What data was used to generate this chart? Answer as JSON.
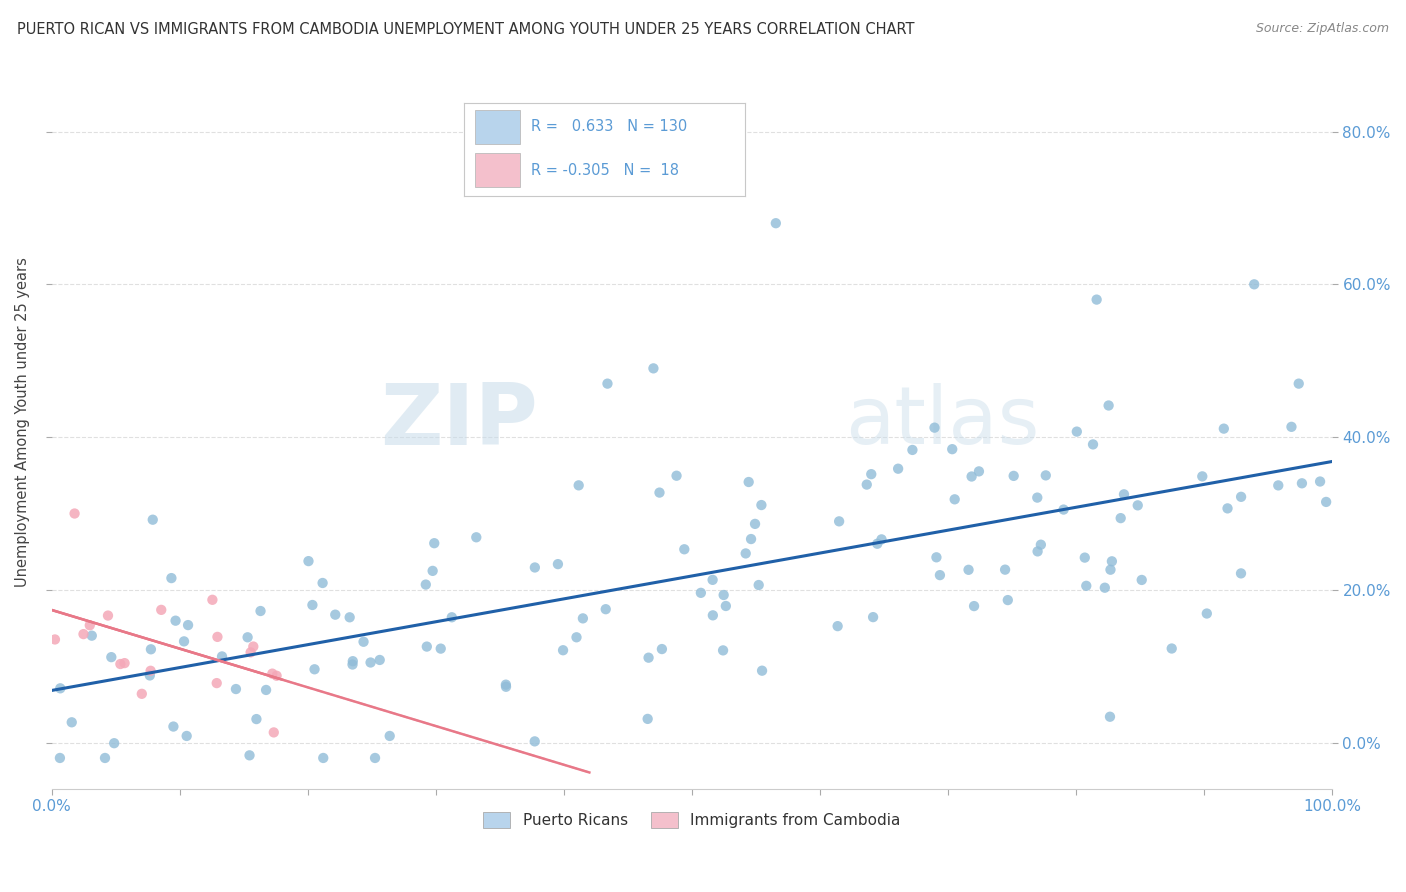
{
  "title": "PUERTO RICAN VS IMMIGRANTS FROM CAMBODIA UNEMPLOYMENT AMONG YOUTH UNDER 25 YEARS CORRELATION CHART",
  "source": "Source: ZipAtlas.com",
  "ylabel": "Unemployment Among Youth under 25 years",
  "legend_bottom": [
    "Puerto Ricans",
    "Immigrants from Cambodia"
  ],
  "r1": 0.633,
  "n1": 130,
  "r2": -0.305,
  "n2": 18,
  "blue_scatter_color": "#90bcd8",
  "pink_scatter_color": "#f4a8b8",
  "blue_line_color": "#2060a8",
  "pink_line_color": "#e87888",
  "blue_legend_fill": "#b8d4ec",
  "pink_legend_fill": "#f4c0cc",
  "watermark_zip": "ZIP",
  "watermark_atlas": "atlas",
  "background_color": "#ffffff",
  "grid_color": "#e0e0e0",
  "title_color": "#333333",
  "tick_label_color": "#5b9bd5",
  "seed": 99,
  "xlim": [
    0.0,
    1.0
  ],
  "ylim": [
    -0.06,
    0.9
  ]
}
